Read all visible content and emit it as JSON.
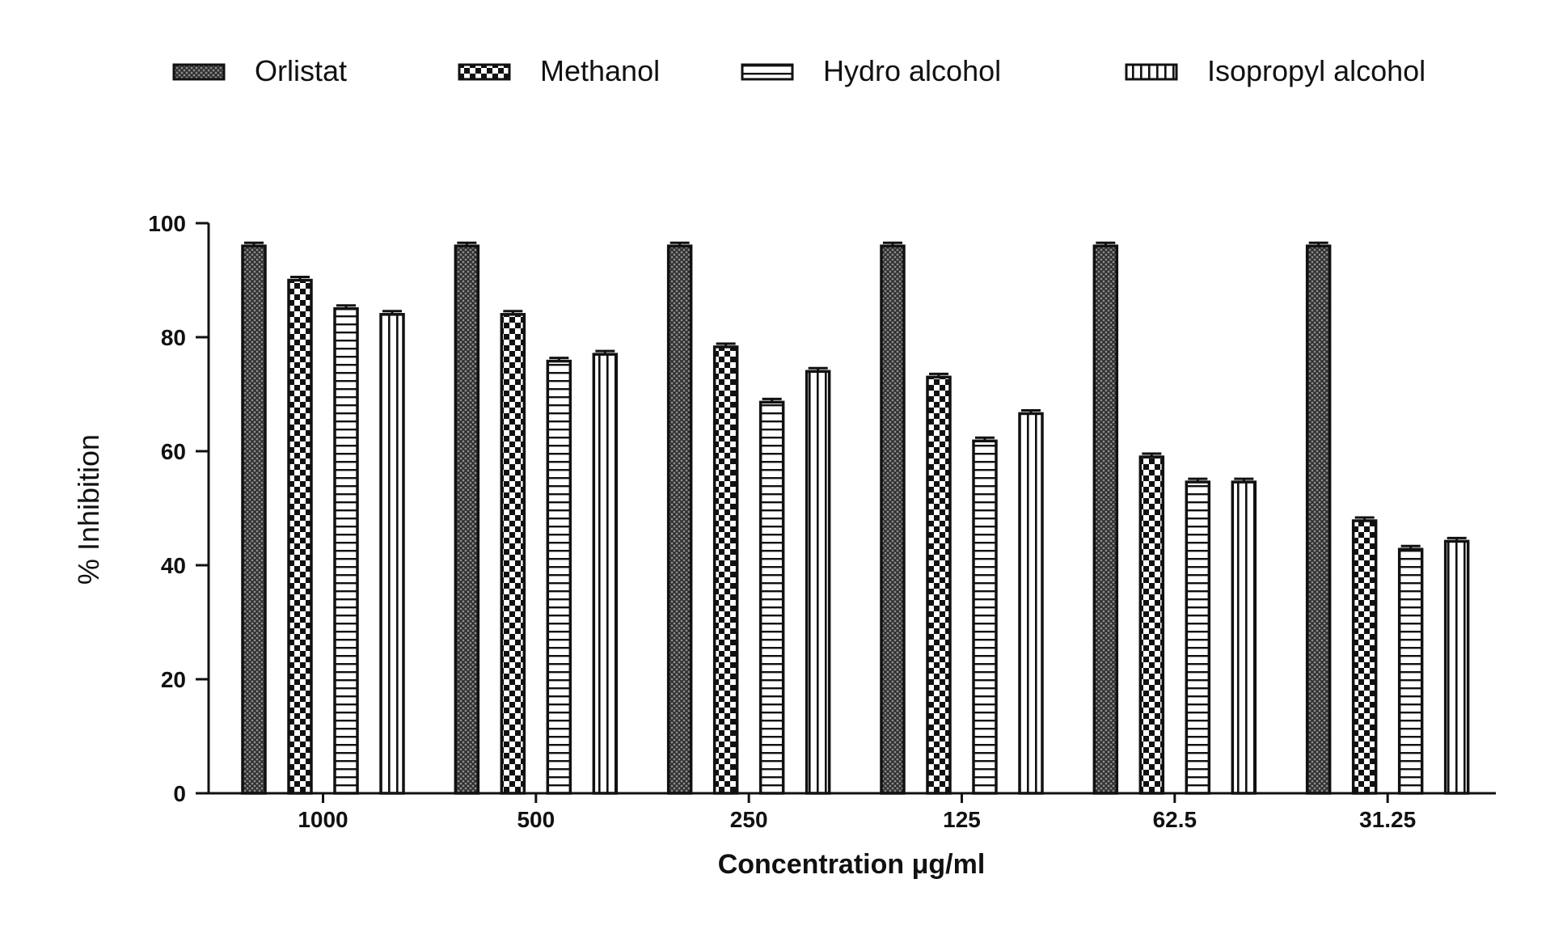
{
  "chart_data": {
    "type": "bar",
    "xlabel": "Concentration μg/ml",
    "ylabel": "% Inhibition",
    "ylim": [
      0,
      100
    ],
    "yticks": [
      0,
      20,
      40,
      60,
      80,
      100
    ],
    "legend_position": "top",
    "grid": false,
    "categories": [
      "1000",
      "500",
      "250",
      "125",
      "62.5",
      "31.25"
    ],
    "series": [
      {
        "name": "Orlistat",
        "pattern": "crosshatch",
        "values": [
          96,
          96,
          96,
          96,
          96,
          96
        ]
      },
      {
        "name": "Methanol",
        "pattern": "checker",
        "values": [
          90,
          84,
          78.3,
          73,
          59,
          47.8
        ]
      },
      {
        "name": "Hydro alcohol",
        "pattern": "horizontal-lines",
        "values": [
          85,
          75.8,
          68.6,
          61.8,
          54.6,
          42.8
        ]
      },
      {
        "name": "Isopropyl alcohol",
        "pattern": "vertical-lines",
        "values": [
          84,
          77,
          74,
          66.6,
          54.6,
          44.2
        ]
      }
    ]
  }
}
